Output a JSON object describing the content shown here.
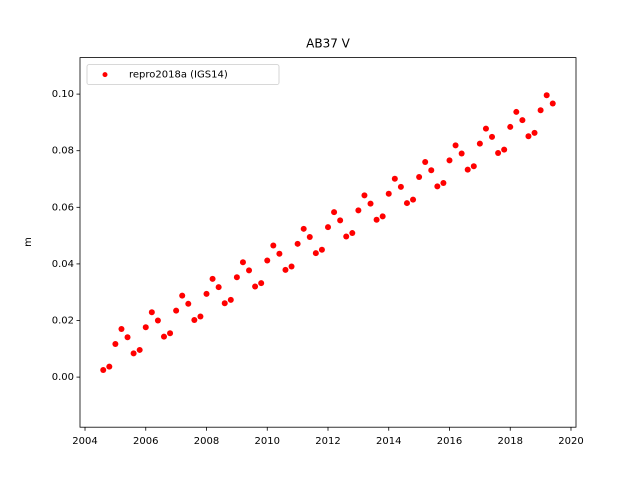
{
  "chart_data": {
    "type": "scatter",
    "title": "AB37 V",
    "y_label": "m",
    "legend_loc": "upper left",
    "xlim": [
      2003.835,
      2020.165
    ],
    "xticks": [
      2004,
      2006,
      2008,
      2010,
      2012,
      2014,
      2016,
      2018,
      2020
    ],
    "ylim": [
      -0.0177,
      0.1129
    ],
    "yticks": [
      {
        "value": 0,
        "label": "0.00"
      },
      {
        "value": 0.02,
        "label": "0.02"
      },
      {
        "value": 0.04,
        "label": "0.04"
      },
      {
        "value": 0.06,
        "label": "0.06"
      },
      {
        "value": 0.08,
        "label": "0.08"
      },
      {
        "value": 0.1,
        "label": "0.10"
      }
    ],
    "series": [
      {
        "name": "repro2018a (IGS14)",
        "color": "#ff0000",
        "x": [
          2004.6,
          2004.8,
          2005.0,
          2005.2,
          2005.4,
          2005.6,
          2005.8,
          2006.0,
          2006.2,
          2006.4,
          2006.6,
          2006.8,
          2007.0,
          2007.2,
          2007.4,
          2007.6,
          2007.8,
          2008.0,
          2008.2,
          2008.4,
          2008.6,
          2008.8,
          2009.0,
          2009.2,
          2009.4,
          2009.6,
          2009.8,
          2010.0,
          2010.2,
          2010.4,
          2010.6,
          2010.8,
          2011.0,
          2011.2,
          2011.4,
          2011.6,
          2011.8,
          2012.0,
          2012.2,
          2012.4,
          2012.6,
          2012.8,
          2013.0,
          2013.2,
          2013.4,
          2013.6,
          2013.8,
          2014.0,
          2014.2,
          2014.4,
          2014.6,
          2014.8,
          2015.0,
          2015.2,
          2015.4,
          2015.6,
          2015.8,
          2016.0,
          2016.2,
          2016.4,
          2016.6,
          2016.8,
          2017.0,
          2017.2,
          2017.4,
          2017.6,
          2017.8,
          2018.0,
          2018.2,
          2018.4,
          2018.6,
          2018.8,
          2019.0,
          2019.2,
          2019.4
        ],
        "values": [
          0.0025,
          0.0037,
          0.0117,
          0.017,
          0.0141,
          0.0084,
          0.0096,
          0.0176,
          0.0229,
          0.02,
          0.0143,
          0.0155,
          0.0235,
          0.0288,
          0.0259,
          0.0202,
          0.0214,
          0.0294,
          0.0347,
          0.0318,
          0.0261,
          0.0273,
          0.0353,
          0.0406,
          0.0377,
          0.032,
          0.0332,
          0.0412,
          0.0465,
          0.0436,
          0.0379,
          0.0391,
          0.0471,
          0.0524,
          0.0495,
          0.0438,
          0.045,
          0.053,
          0.0583,
          0.0554,
          0.0497,
          0.0509,
          0.0589,
          0.0642,
          0.0613,
          0.0556,
          0.0568,
          0.0648,
          0.0701,
          0.0672,
          0.0615,
          0.0627,
          0.0707,
          0.076,
          0.0731,
          0.0674,
          0.0686,
          0.0766,
          0.0819,
          0.079,
          0.0733,
          0.0745,
          0.0825,
          0.0878,
          0.0849,
          0.0792,
          0.0804,
          0.0884,
          0.0937,
          0.0908,
          0.0851,
          0.0863,
          0.0943,
          0.0996,
          0.0967
        ]
      }
    ]
  }
}
